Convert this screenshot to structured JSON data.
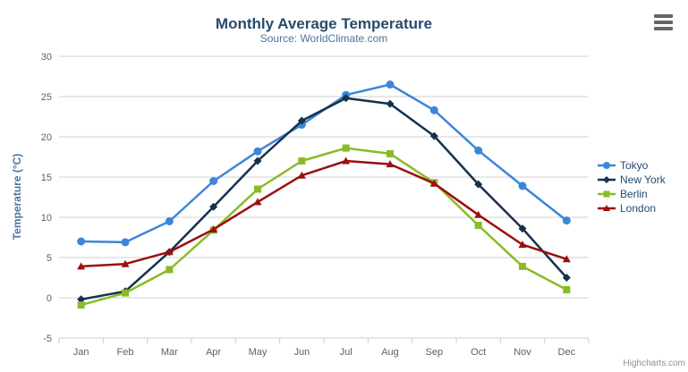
{
  "chart_data": {
    "type": "line",
    "title": "Monthly Average Temperature",
    "subtitle": "Source: WorldClimate.com",
    "xlabel": "",
    "ylabel": "Temperature (°C)",
    "categories": [
      "Jan",
      "Feb",
      "Mar",
      "Apr",
      "May",
      "Jun",
      "Jul",
      "Aug",
      "Sep",
      "Oct",
      "Nov",
      "Dec"
    ],
    "series": [
      {
        "name": "Tokyo",
        "color": "#3c86d8",
        "marker": "circle",
        "values": [
          7.0,
          6.9,
          9.5,
          14.5,
          18.2,
          21.5,
          25.2,
          26.5,
          23.3,
          18.3,
          13.9,
          9.6
        ]
      },
      {
        "name": "New York",
        "color": "#16314c",
        "marker": "diamond",
        "values": [
          -0.2,
          0.8,
          5.7,
          11.3,
          17.0,
          22.0,
          24.8,
          24.1,
          20.1,
          14.1,
          8.6,
          2.5
        ]
      },
      {
        "name": "Berlin",
        "color": "#8abb26",
        "marker": "square",
        "values": [
          -0.9,
          0.6,
          3.5,
          8.4,
          13.5,
          17.0,
          18.6,
          17.9,
          14.3,
          9.0,
          3.9,
          1.0
        ]
      },
      {
        "name": "London",
        "color": "#9b0f0f",
        "marker": "triangle",
        "values": [
          3.9,
          4.2,
          5.7,
          8.5,
          11.9,
          15.2,
          17.0,
          16.6,
          14.2,
          10.3,
          6.6,
          4.8
        ]
      }
    ],
    "ylim": [
      -5,
      30
    ],
    "ytick_step": 5,
    "grid": true,
    "legend_position": "right"
  },
  "colors": {
    "title": "#274b6d",
    "subtitle": "#4d759e",
    "axis_label": "#606060",
    "grid": "#d0d0d0",
    "axis_line": "#c0d0e0",
    "legend_text": "#274b6d",
    "hamburger": "#666666",
    "credits_text": "#909090"
  },
  "export_menu": {
    "icon": "hamburger-icon"
  },
  "credits": {
    "label": "Highcharts.com"
  }
}
